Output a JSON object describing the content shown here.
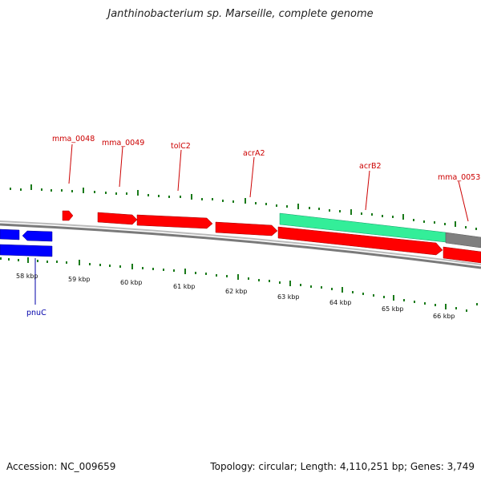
{
  "title": "Janthinobacterium sp. Marseille, complete genome",
  "footer": {
    "accession": "Accession: NC_009659",
    "topology": "Topology: circular; Length: 4,110,251 bp; Genes: 3,749"
  },
  "colors": {
    "forward_gene": "#ff0000",
    "reverse_gene": "#0000ff",
    "highlight_gene": "#33ee99",
    "other_gene": "#808080",
    "backbone": "#8a8a8a",
    "tick": "#1a7a1a",
    "label_forward": "#cc0000",
    "label_reverse": "#0000aa"
  },
  "ticks": [
    "58 kbp",
    "59 kbp",
    "60 kbp",
    "61 kbp",
    "62 kbp",
    "63 kbp",
    "64 kbp",
    "65 kbp",
    "66 kbp"
  ],
  "gene_labels": [
    {
      "name": "mma_0048",
      "strand": "forward"
    },
    {
      "name": "mma_0049",
      "strand": "forward"
    },
    {
      "name": "tolC2",
      "strand": "forward"
    },
    {
      "name": "acrA2",
      "strand": "forward"
    },
    {
      "name": "acrB2",
      "strand": "forward"
    },
    {
      "name": "mma_0053",
      "strand": "forward"
    },
    {
      "name": "pnuC",
      "strand": "reverse"
    }
  ]
}
